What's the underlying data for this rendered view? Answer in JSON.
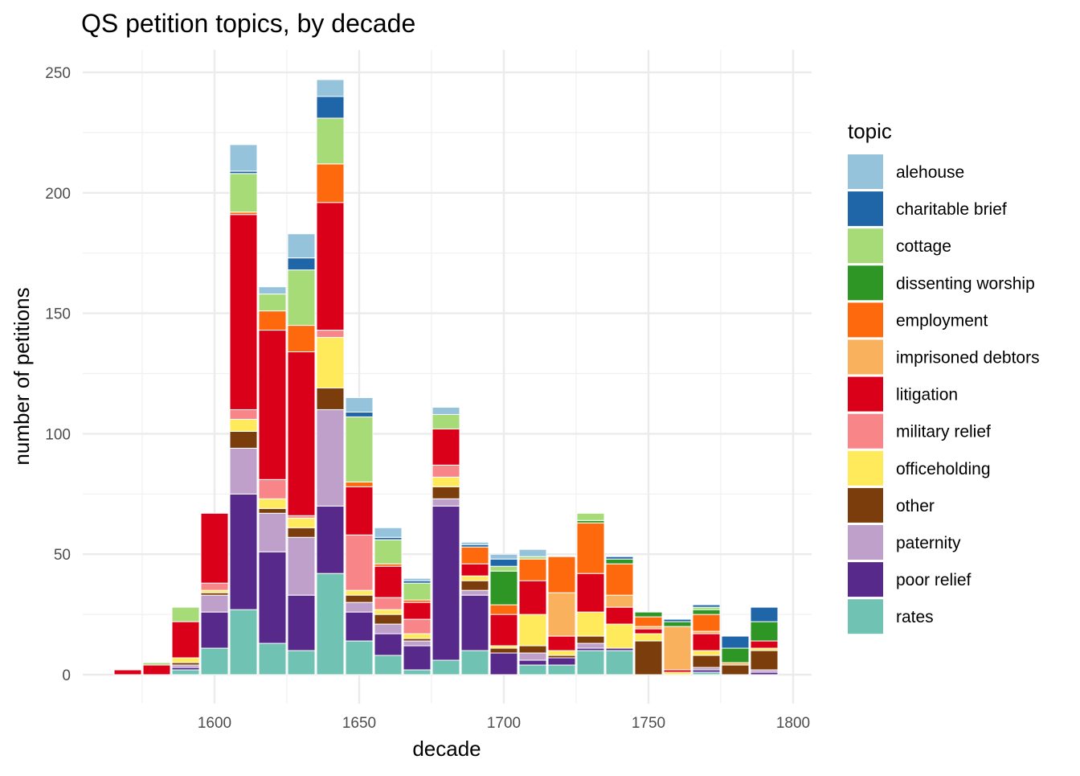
{
  "chart_data": {
    "type": "bar",
    "stacked": true,
    "title": "QS petition topics, by decade",
    "xlabel": "decade",
    "ylabel": "number of petitions",
    "xlim": [
      1560,
      1803
    ],
    "ylim": [
      -10,
      260
    ],
    "x_ticks": [
      1600,
      1650,
      1700,
      1750,
      1800
    ],
    "y_ticks": [
      0,
      50,
      100,
      150,
      200,
      250
    ],
    "grid": true,
    "legend": {
      "title": "topic",
      "position": "right"
    },
    "categories": [
      1570,
      1580,
      1590,
      1600,
      1610,
      1620,
      1630,
      1640,
      1650,
      1660,
      1670,
      1680,
      1690,
      1700,
      1710,
      1720,
      1730,
      1740,
      1750,
      1760,
      1770,
      1780,
      1790
    ],
    "series": [
      {
        "name": "alehouse",
        "color": "#96C3DC",
        "values": [
          0,
          0,
          0,
          0,
          11,
          3,
          10,
          7,
          6,
          4,
          1,
          3,
          1,
          2,
          3,
          0,
          0,
          0,
          0,
          0,
          0,
          0,
          0
        ]
      },
      {
        "name": "charitable brief",
        "color": "#1F66A8",
        "values": [
          0,
          0,
          0,
          0,
          1,
          0,
          5,
          9,
          2,
          1,
          1,
          0,
          1,
          3,
          0,
          0,
          0,
          1,
          0,
          1,
          1,
          5,
          6
        ]
      },
      {
        "name": "cottage",
        "color": "#A6DB78",
        "values": [
          0,
          1,
          6,
          0,
          16,
          7,
          23,
          19,
          27,
          10,
          7,
          6,
          0,
          2,
          1,
          0,
          3,
          0,
          0,
          0,
          1,
          0,
          0
        ]
      },
      {
        "name": "dissenting worship",
        "color": "#2D9624",
        "values": [
          0,
          0,
          0,
          0,
          0,
          0,
          0,
          0,
          0,
          0,
          0,
          0,
          0,
          14,
          0,
          0,
          1,
          2,
          2,
          2,
          2,
          6,
          8
        ]
      },
      {
        "name": "employment",
        "color": "#FD690C",
        "values": [
          0,
          0,
          0,
          0,
          1,
          8,
          11,
          16,
          2,
          1,
          1,
          0,
          7,
          4,
          9,
          15,
          21,
          13,
          4,
          0,
          7,
          0,
          0
        ]
      },
      {
        "name": "imprisoned debtors",
        "color": "#FAB15E",
        "values": [
          0,
          0,
          0,
          0,
          0,
          0,
          0,
          0,
          0,
          0,
          0,
          0,
          0,
          0,
          0,
          18,
          0,
          5,
          1,
          18,
          1,
          1,
          0
        ]
      },
      {
        "name": "litigation",
        "color": "#DA0019",
        "values": [
          2,
          4,
          15,
          29,
          81,
          62,
          68,
          53,
          20,
          13,
          7,
          15,
          5,
          13,
          14,
          6,
          16,
          7,
          2,
          1,
          7,
          0,
          3
        ]
      },
      {
        "name": "military relief",
        "color": "#F88689",
        "values": [
          0,
          0,
          0,
          3,
          4,
          8,
          1,
          3,
          23,
          5,
          6,
          5,
          0,
          0,
          0,
          0,
          0,
          0,
          0,
          0,
          0,
          0,
          0
        ]
      },
      {
        "name": "officeholding",
        "color": "#FFEA5B",
        "values": [
          0,
          0,
          2,
          1,
          5,
          4,
          4,
          21,
          2,
          2,
          2,
          4,
          2,
          1,
          13,
          2,
          10,
          10,
          3,
          1,
          2,
          0,
          1
        ]
      },
      {
        "name": "other",
        "color": "#7A3D0B",
        "values": [
          0,
          0,
          1,
          1,
          7,
          2,
          4,
          9,
          3,
          4,
          1,
          5,
          4,
          2,
          3,
          1,
          3,
          0,
          14,
          0,
          5,
          4,
          8
        ]
      },
      {
        "name": "paternity",
        "color": "#BEA0CB",
        "values": [
          0,
          0,
          1,
          7,
          19,
          16,
          24,
          40,
          4,
          4,
          2,
          3,
          2,
          0,
          3,
          0,
          2,
          0,
          0,
          0,
          1,
          0,
          1
        ]
      },
      {
        "name": "poor relief",
        "color": "#56298B",
        "values": [
          0,
          0,
          1,
          15,
          48,
          38,
          23,
          28,
          12,
          9,
          10,
          64,
          23,
          9,
          2,
          3,
          1,
          1,
          0,
          0,
          1,
          0,
          1
        ]
      },
      {
        "name": "rates",
        "color": "#70C3B3",
        "values": [
          0,
          0,
          2,
          11,
          27,
          13,
          10,
          42,
          14,
          8,
          2,
          6,
          10,
          0,
          4,
          4,
          10,
          10,
          0,
          0,
          1,
          0,
          0
        ]
      }
    ]
  }
}
